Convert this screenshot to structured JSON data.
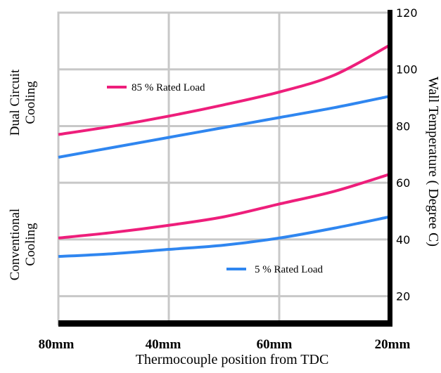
{
  "chart_data": {
    "type": "line",
    "title": "",
    "xlabel": "Thermocouple position from TDC",
    "ylabel": "Wall Temperature ( Degree C)",
    "x_tick_labels": [
      "80mm",
      "40mm",
      "60mm",
      "20mm"
    ],
    "y_ticks": [
      20,
      40,
      60,
      80,
      100,
      120
    ],
    "ylim": [
      10,
      120
    ],
    "grid": true,
    "group_labels": [
      {
        "lines": [
          "Dual Circuit",
          "Cooling"
        ]
      },
      {
        "lines": [
          "Conventional",
          "Cooling"
        ]
      }
    ],
    "legend": [
      {
        "name": "85 % Rated Load",
        "color": "#ee1e7b"
      },
      {
        "name": "5 % Rated Load",
        "color": "#2f86f0"
      }
    ],
    "series": [
      {
        "load": "85 % Rated Load",
        "group": "Dual Circuit Cooling",
        "color": "#ee1e7b",
        "values": [
          77,
          80,
          83.5,
          87.5,
          92,
          98,
          108.5
        ]
      },
      {
        "load": "5 % Rated Load",
        "group": "Dual Circuit Cooling",
        "color": "#2f86f0",
        "values": [
          69,
          72.5,
          76,
          79.5,
          83,
          86.5,
          90.5
        ]
      },
      {
        "load": "85 % Rated Load",
        "group": "Conventional Cooling",
        "color": "#ee1e7b",
        "values": [
          40.5,
          42.5,
          45,
          48,
          52.5,
          57,
          63
        ]
      },
      {
        "load": "5 % Rated Load",
        "group": "Conventional Cooling",
        "color": "#2f86f0",
        "values": [
          34,
          35,
          36.5,
          38,
          40.5,
          44,
          48
        ]
      }
    ]
  }
}
